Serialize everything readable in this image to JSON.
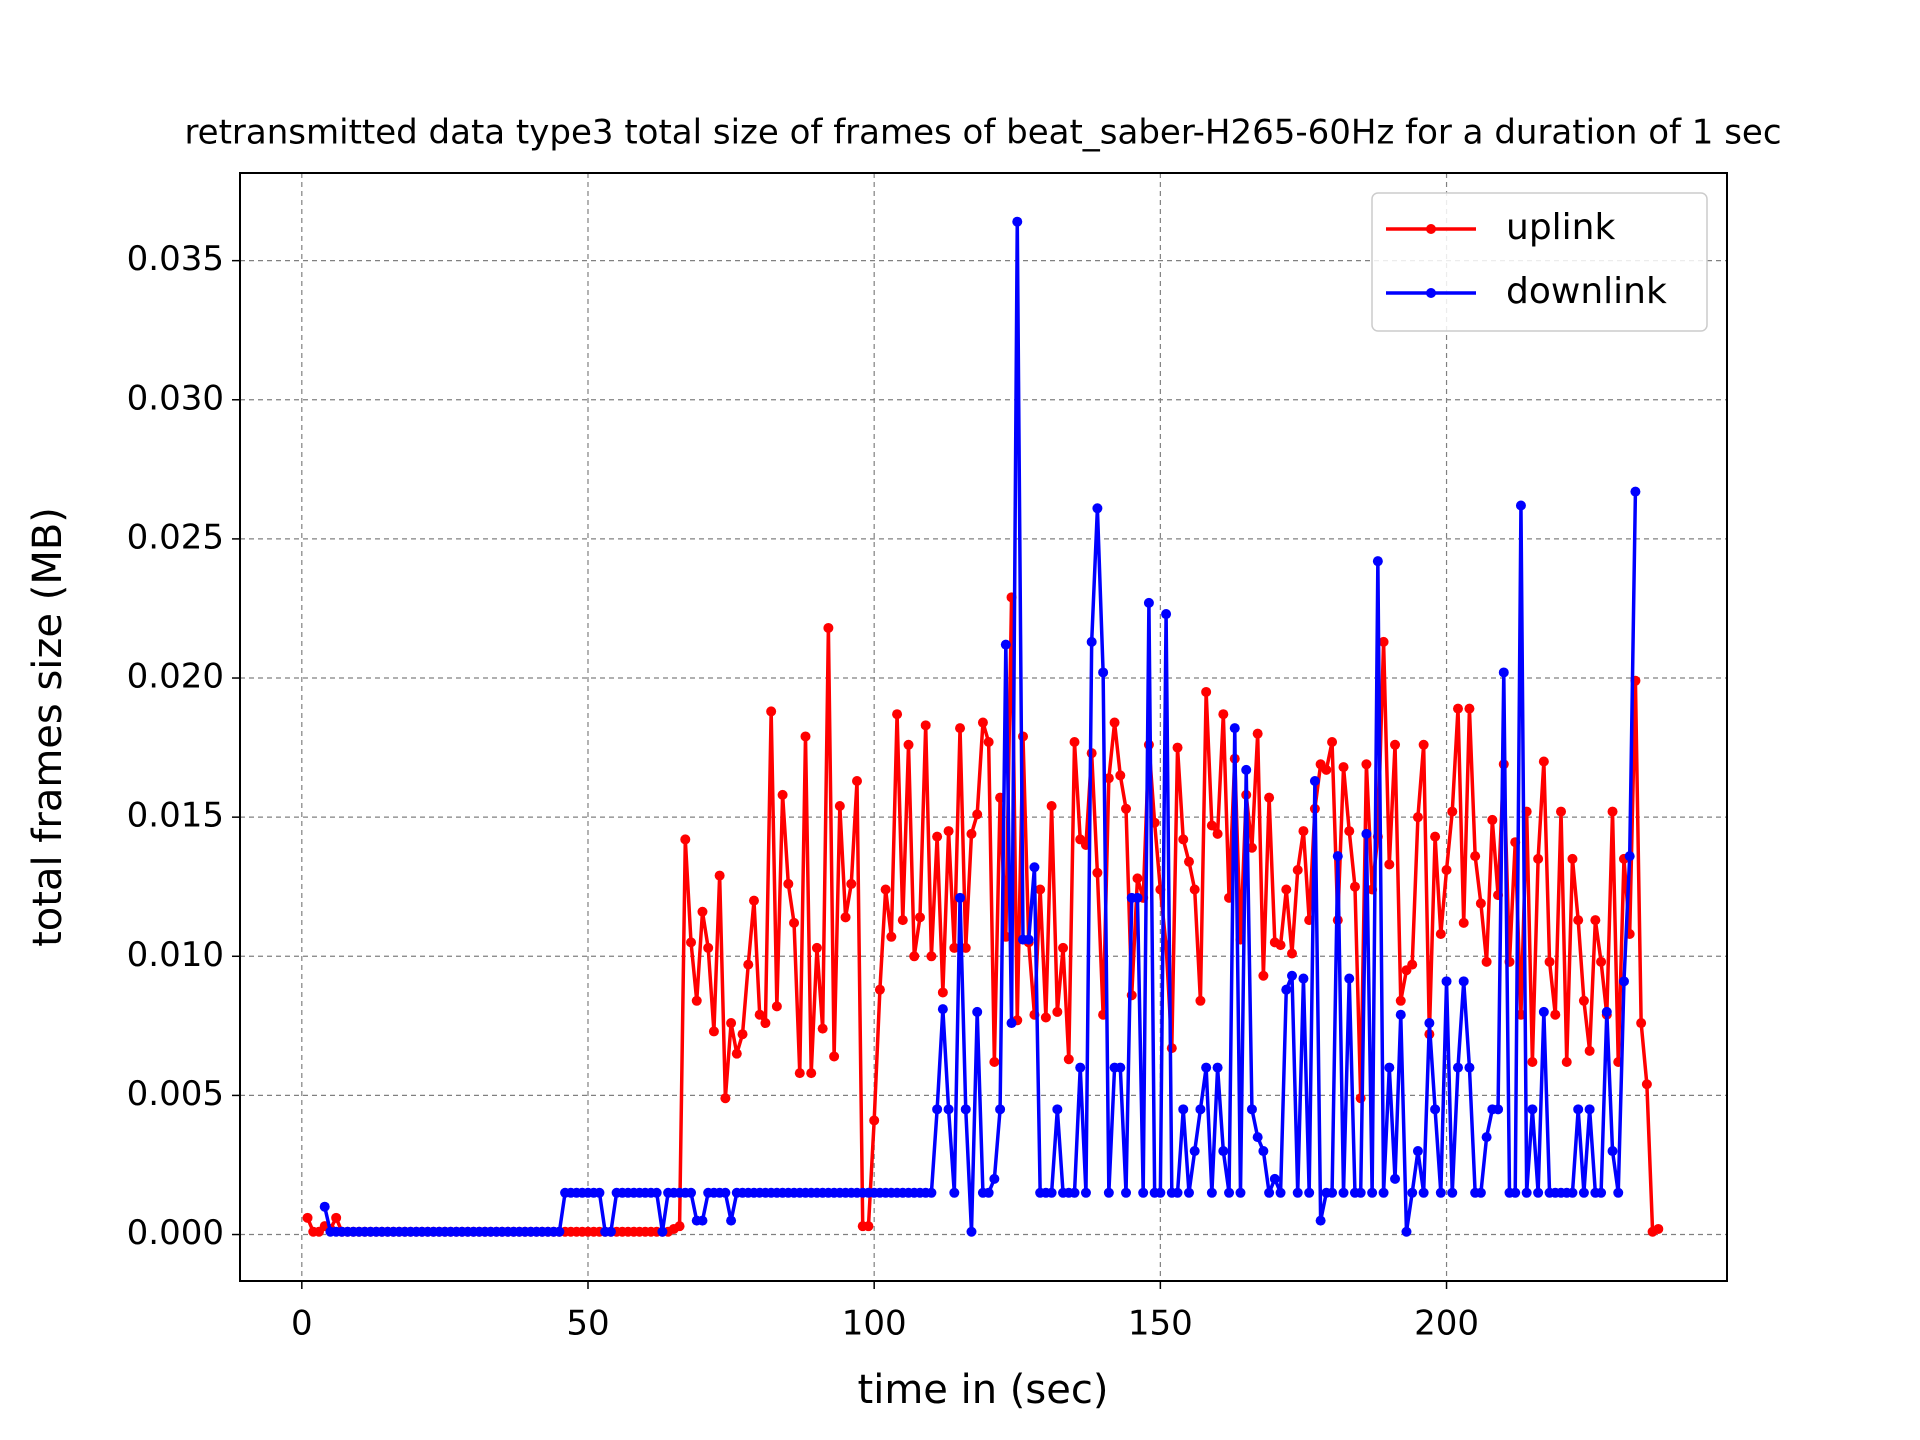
{
  "chart_data": {
    "type": "line",
    "title": "retransmitted data type3 total size of frames of beat_saber-H265-60Hz for a duration of 1 sec",
    "xlabel": "time in (sec)",
    "ylabel": "total frames size (MB)",
    "x": [
      1,
      2,
      3,
      4,
      5,
      6,
      7,
      8,
      9,
      10,
      11,
      12,
      13,
      14,
      15,
      16,
      17,
      18,
      19,
      20,
      21,
      22,
      23,
      24,
      25,
      26,
      27,
      28,
      29,
      30,
      31,
      32,
      33,
      34,
      35,
      36,
      37,
      38,
      39,
      40,
      41,
      42,
      43,
      44,
      45,
      46,
      47,
      48,
      49,
      50,
      51,
      52,
      53,
      54,
      55,
      56,
      57,
      58,
      59,
      60,
      61,
      62,
      63,
      64,
      65,
      66,
      67,
      68,
      69,
      70,
      71,
      72,
      73,
      74,
      75,
      76,
      77,
      78,
      79,
      80,
      81,
      82,
      83,
      84,
      85,
      86,
      87,
      88,
      89,
      90,
      91,
      92,
      93,
      94,
      95,
      96,
      97,
      98,
      99,
      100,
      101,
      102,
      103,
      104,
      105,
      106,
      107,
      108,
      109,
      110,
      111,
      112,
      113,
      114,
      115,
      116,
      117,
      118,
      119,
      120,
      121,
      122,
      123,
      124,
      125,
      126,
      127,
      128,
      129,
      130,
      131,
      132,
      133,
      134,
      135,
      136,
      137,
      138,
      139,
      140,
      141,
      142,
      143,
      144,
      145,
      146,
      147,
      148,
      149,
      150,
      151,
      152,
      153,
      154,
      155,
      156,
      157,
      158,
      159,
      160,
      161,
      162,
      163,
      164,
      165,
      166,
      167,
      168,
      169,
      170,
      171,
      172,
      173,
      174,
      175,
      176,
      177,
      178,
      179,
      180,
      181,
      182,
      183,
      184,
      185,
      186,
      187,
      188,
      189,
      190,
      191,
      192,
      193,
      194,
      195,
      196,
      197,
      198,
      199,
      200,
      201,
      202,
      203,
      204,
      205,
      206,
      207,
      208,
      209,
      210,
      211,
      212,
      213,
      214,
      215,
      216,
      217,
      218,
      219,
      220,
      221,
      222,
      223,
      224,
      225,
      226,
      227,
      228,
      229,
      230,
      231,
      232,
      233,
      234,
      235,
      236,
      237
    ],
    "series": [
      {
        "name": "uplink",
        "color": "#ff0000",
        "values": [
          0.0006,
          0.0001,
          0.0001,
          0.0003,
          0.0002,
          0.0006,
          0.0001,
          0.0001,
          0.0001,
          0.0001,
          0.0001,
          0.0001,
          0.0001,
          0.0001,
          0.0001,
          0.0001,
          0.0001,
          0.0001,
          0.0001,
          0.0001,
          0.0001,
          0.0001,
          0.0001,
          0.0001,
          0.0001,
          0.0001,
          0.0001,
          0.0001,
          0.0001,
          0.0001,
          0.0001,
          0.0001,
          0.0001,
          0.0001,
          0.0001,
          0.0001,
          0.0001,
          0.0001,
          0.0001,
          0.0001,
          0.0001,
          0.0001,
          0.0001,
          0.0001,
          0.0001,
          0.0001,
          0.0001,
          0.0001,
          0.0001,
          0.0001,
          0.0001,
          0.0001,
          0.0001,
          0.0001,
          0.0001,
          0.0001,
          0.0001,
          0.0001,
          0.0001,
          0.0001,
          0.0001,
          0.0001,
          0.0001,
          0.0001,
          0.0002,
          0.0003,
          0.0142,
          0.0105,
          0.0084,
          0.0116,
          0.0103,
          0.0073,
          0.0129,
          0.0049,
          0.0076,
          0.0065,
          0.0072,
          0.0097,
          0.012,
          0.0079,
          0.0076,
          0.0188,
          0.0082,
          0.0158,
          0.0126,
          0.0112,
          0.0058,
          0.0179,
          0.0058,
          0.0103,
          0.0074,
          0.0218,
          0.0064,
          0.0154,
          0.0114,
          0.0126,
          0.0163,
          0.0003,
          0.0003,
          0.0041,
          0.0088,
          0.0124,
          0.0107,
          0.0187,
          0.0113,
          0.0176,
          0.01,
          0.0114,
          0.0183,
          0.01,
          0.0143,
          0.0087,
          0.0145,
          0.0103,
          0.0182,
          0.0103,
          0.0144,
          0.0151,
          0.0184,
          0.0177,
          0.0062,
          0.0157,
          0.0107,
          0.0229,
          0.0077,
          0.0179,
          0.0105,
          0.0079,
          0.0124,
          0.0078,
          0.0154,
          0.008,
          0.0103,
          0.0063,
          0.0177,
          0.0142,
          0.014,
          0.0173,
          0.013,
          0.0079,
          0.0164,
          0.0184,
          0.0165,
          0.0153,
          0.0086,
          0.0128,
          0.0121,
          0.0176,
          0.0148,
          0.0124,
          0.0104,
          0.0067,
          0.0175,
          0.0142,
          0.0134,
          0.0124,
          0.0084,
          0.0195,
          0.0147,
          0.0144,
          0.0187,
          0.0121,
          0.0171,
          0.0106,
          0.0158,
          0.0139,
          0.018,
          0.0093,
          0.0157,
          0.0105,
          0.0104,
          0.0124,
          0.0101,
          0.0131,
          0.0145,
          0.0113,
          0.0153,
          0.0169,
          0.0167,
          0.0177,
          0.0113,
          0.0168,
          0.0145,
          0.0125,
          0.0049,
          0.0169,
          0.0124,
          0.0143,
          0.0213,
          0.0133,
          0.0176,
          0.0084,
          0.0095,
          0.0097,
          0.015,
          0.0176,
          0.0072,
          0.0143,
          0.0108,
          0.0131,
          0.0152,
          0.0189,
          0.0112,
          0.0189,
          0.0136,
          0.0119,
          0.0098,
          0.0149,
          0.0122,
          0.0169,
          0.0098,
          0.0141,
          0.0079,
          0.0152,
          0.0062,
          0.0135,
          0.017,
          0.0098,
          0.0079,
          0.0152,
          0.0062,
          0.0135,
          0.0113,
          0.0084,
          0.0066,
          0.0113,
          0.0098,
          0.0079,
          0.0152,
          0.0062,
          0.0135,
          0.0108,
          0.0199,
          0.0076,
          0.0054,
          0.0001,
          0.0002
        ]
      },
      {
        "name": "downlink",
        "color": "#0000ff",
        "values": [
          null,
          null,
          null,
          0.001,
          0.0001,
          0.0001,
          0.0001,
          0.0001,
          0.0001,
          0.0001,
          0.0001,
          0.0001,
          0.0001,
          0.0001,
          0.0001,
          0.0001,
          0.0001,
          0.0001,
          0.0001,
          0.0001,
          0.0001,
          0.0001,
          0.0001,
          0.0001,
          0.0001,
          0.0001,
          0.0001,
          0.0001,
          0.0001,
          0.0001,
          0.0001,
          0.0001,
          0.0001,
          0.0001,
          0.0001,
          0.0001,
          0.0001,
          0.0001,
          0.0001,
          0.0001,
          0.0001,
          0.0001,
          0.0001,
          0.0001,
          0.0001,
          0.0015,
          0.0015,
          0.0015,
          0.0015,
          0.0015,
          0.0015,
          0.0015,
          0.0001,
          0.0001,
          0.0015,
          0.0015,
          0.0015,
          0.0015,
          0.0015,
          0.0015,
          0.0015,
          0.0015,
          0.0001,
          0.0015,
          0.0015,
          0.0015,
          0.0015,
          0.0015,
          0.0005,
          0.0005,
          0.0015,
          0.0015,
          0.0015,
          0.0015,
          0.0005,
          0.0015,
          0.0015,
          0.0015,
          0.0015,
          0.0015,
          0.0015,
          0.0015,
          0.0015,
          0.0015,
          0.0015,
          0.0015,
          0.0015,
          0.0015,
          0.0015,
          0.0015,
          0.0015,
          0.0015,
          0.0015,
          0.0015,
          0.0015,
          0.0015,
          0.0015,
          0.0015,
          0.0015,
          0.0015,
          0.0015,
          0.0015,
          0.0015,
          0.0015,
          0.0015,
          0.0015,
          0.0015,
          0.0015,
          0.0015,
          0.0015,
          0.0045,
          0.0081,
          0.0045,
          0.0015,
          0.0121,
          0.0045,
          0.0001,
          0.008,
          0.0015,
          0.0015,
          0.002,
          0.0045,
          0.0212,
          0.0076,
          0.0364,
          0.0106,
          0.0106,
          0.0132,
          0.0015,
          0.0015,
          0.0015,
          0.0045,
          0.0015,
          0.0015,
          0.0015,
          0.006,
          0.0015,
          0.0213,
          0.0261,
          0.0202,
          0.0015,
          0.006,
          0.006,
          0.0015,
          0.0121,
          0.0121,
          0.0015,
          0.0227,
          0.0015,
          0.0015,
          0.0223,
          0.0015,
          0.0015,
          0.0045,
          0.0015,
          0.003,
          0.0045,
          0.006,
          0.0015,
          0.006,
          0.003,
          0.0015,
          0.0182,
          0.0015,
          0.0167,
          0.0045,
          0.0035,
          0.003,
          0.0015,
          0.002,
          0.0015,
          0.0088,
          0.0093,
          0.0015,
          0.0092,
          0.0015,
          0.0163,
          0.0005,
          0.0015,
          0.0015,
          0.0136,
          0.0015,
          0.0092,
          0.0015,
          0.0015,
          0.0144,
          0.0015,
          0.0242,
          0.0015,
          0.006,
          0.002,
          0.0079,
          0.0001,
          0.0015,
          0.003,
          0.0015,
          0.0076,
          0.0045,
          0.0015,
          0.0091,
          0.0015,
          0.006,
          0.0091,
          0.006,
          0.0015,
          0.0015,
          0.0035,
          0.0045,
          0.0045,
          0.0202,
          0.0015,
          0.0015,
          0.0262,
          0.0015,
          0.0045,
          0.0015,
          0.008,
          0.0015,
          0.0015,
          0.0015,
          0.0015,
          0.0015,
          0.0045,
          0.0015,
          0.0045,
          0.0015,
          0.0015,
          0.008,
          0.003,
          0.0015,
          0.0091,
          0.0136,
          0.0267,
          null,
          null,
          null,
          null
        ]
      }
    ],
    "xlim": [
      -10.8,
      249
    ],
    "ylim": [
      -0.00167,
      0.03815
    ],
    "xticks": [
      0,
      50,
      100,
      150,
      200
    ],
    "yticks": [
      {
        "value": 0,
        "label": "0.000"
      },
      0.005,
      {
        "value": 0.01,
        "label": "0.010"
      },
      0.015,
      {
        "value": 0.02,
        "label": "0.020"
      },
      0.025,
      {
        "value": 0.03,
        "label": "0.030"
      },
      0.035
    ],
    "grid": true,
    "legend": "upper right"
  }
}
